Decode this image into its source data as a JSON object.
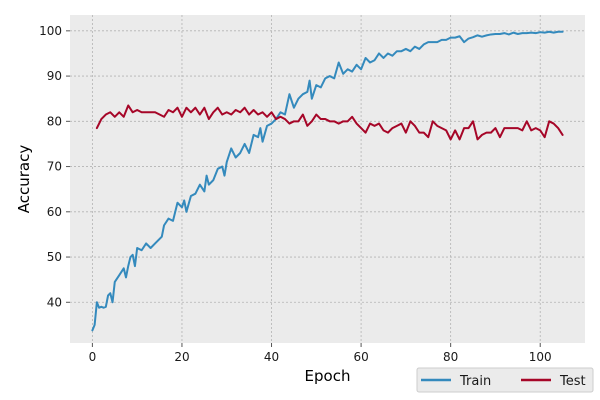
{
  "chart_data": {
    "type": "line",
    "title": "",
    "xlabel": "Epoch",
    "ylabel": "Accuracy",
    "xlim": [
      -5,
      110
    ],
    "ylim": [
      31,
      103.5
    ],
    "xticks": [
      0,
      20,
      40,
      60,
      80,
      100
    ],
    "yticks": [
      40,
      50,
      60,
      70,
      80,
      90,
      100
    ],
    "grid": true,
    "legend": "bottom-right (outside plot)",
    "colors": {
      "background": "#ebebeb",
      "grid": "#b3b3b3"
    },
    "series": [
      {
        "name": "Train",
        "color": "#348abd",
        "points": [
          [
            0,
            33.8
          ],
          [
            0.5,
            35
          ],
          [
            1,
            40
          ],
          [
            1.5,
            38.8
          ],
          [
            2,
            39
          ],
          [
            2.5,
            38.8
          ],
          [
            3,
            39
          ],
          [
            3.5,
            41.5
          ],
          [
            4,
            42
          ],
          [
            4.5,
            40
          ],
          [
            5,
            44.5
          ],
          [
            6,
            46
          ],
          [
            7,
            47.5
          ],
          [
            7.5,
            45.5
          ],
          [
            8,
            48
          ],
          [
            8.5,
            50
          ],
          [
            9,
            50.5
          ],
          [
            9.5,
            48
          ],
          [
            10,
            52
          ],
          [
            11,
            51.5
          ],
          [
            12,
            53
          ],
          [
            13,
            52
          ],
          [
            14,
            53
          ],
          [
            15,
            54
          ],
          [
            15.5,
            54.5
          ],
          [
            16,
            57
          ],
          [
            17,
            58.5
          ],
          [
            18,
            58
          ],
          [
            18.5,
            60
          ],
          [
            19,
            62
          ],
          [
            20,
            61
          ],
          [
            20.5,
            62.5
          ],
          [
            21,
            60
          ],
          [
            22,
            63.5
          ],
          [
            23,
            64
          ],
          [
            24,
            66
          ],
          [
            25,
            64.5
          ],
          [
            25.5,
            68
          ],
          [
            26,
            66
          ],
          [
            27,
            67
          ],
          [
            28,
            69.5
          ],
          [
            29,
            70
          ],
          [
            29.5,
            68
          ],
          [
            30,
            71
          ],
          [
            31,
            74
          ],
          [
            32,
            72
          ],
          [
            33,
            73
          ],
          [
            34,
            75
          ],
          [
            35,
            73
          ],
          [
            36,
            77
          ],
          [
            37,
            76.5
          ],
          [
            37.5,
            78.5
          ],
          [
            38,
            75.5
          ],
          [
            39,
            79
          ],
          [
            40,
            79.5
          ],
          [
            41,
            80.5
          ],
          [
            42,
            82
          ],
          [
            43,
            81.5
          ],
          [
            44,
            86
          ],
          [
            45,
            83
          ],
          [
            46,
            85
          ],
          [
            47,
            86
          ],
          [
            48,
            86.5
          ],
          [
            48.5,
            89
          ],
          [
            49,
            85
          ],
          [
            50,
            88
          ],
          [
            51,
            87.5
          ],
          [
            52,
            89.5
          ],
          [
            53,
            90
          ],
          [
            54,
            89.5
          ],
          [
            55,
            93
          ],
          [
            56,
            90.5
          ],
          [
            57,
            91.5
          ],
          [
            58,
            91
          ],
          [
            59,
            92.5
          ],
          [
            60,
            91.5
          ],
          [
            61,
            94
          ],
          [
            62,
            93
          ],
          [
            63,
            93.5
          ],
          [
            64,
            95
          ],
          [
            65,
            94
          ],
          [
            66,
            95
          ],
          [
            67,
            94.5
          ],
          [
            68,
            95.5
          ],
          [
            69,
            95.5
          ],
          [
            70,
            96
          ],
          [
            71,
            95.5
          ],
          [
            72,
            96.5
          ],
          [
            73,
            96
          ],
          [
            74,
            97
          ],
          [
            75,
            97.5
          ],
          [
            76,
            97.5
          ],
          [
            77,
            97.5
          ],
          [
            78,
            98
          ],
          [
            79,
            98
          ],
          [
            80,
            98.5
          ],
          [
            81,
            98.5
          ],
          [
            82,
            98.8
          ],
          [
            83,
            97.5
          ],
          [
            84,
            98.3
          ],
          [
            85,
            98.6
          ],
          [
            86,
            99
          ],
          [
            87,
            98.7
          ],
          [
            88,
            99
          ],
          [
            89,
            99.2
          ],
          [
            90,
            99.3
          ],
          [
            91,
            99.3
          ],
          [
            92,
            99.5
          ],
          [
            93,
            99.2
          ],
          [
            94,
            99.6
          ],
          [
            95,
            99.3
          ],
          [
            96,
            99.5
          ],
          [
            97,
            99.5
          ],
          [
            98,
            99.6
          ],
          [
            99,
            99.5
          ],
          [
            100,
            99.7
          ],
          [
            101,
            99.6
          ],
          [
            102,
            99.8
          ],
          [
            103,
            99.6
          ],
          [
            104,
            99.8
          ],
          [
            105,
            99.8
          ]
        ]
      },
      {
        "name": "Test",
        "color": "#a60628",
        "points": [
          [
            1,
            78.5
          ],
          [
            2,
            80.5
          ],
          [
            3,
            81.5
          ],
          [
            4,
            82
          ],
          [
            5,
            81
          ],
          [
            6,
            82
          ],
          [
            7,
            81
          ],
          [
            8,
            83.5
          ],
          [
            9,
            82
          ],
          [
            10,
            82.5
          ],
          [
            11,
            82
          ],
          [
            12,
            82
          ],
          [
            13,
            82
          ],
          [
            14,
            82
          ],
          [
            15,
            81.5
          ],
          [
            16,
            81
          ],
          [
            17,
            82.5
          ],
          [
            18,
            82
          ],
          [
            19,
            83
          ],
          [
            20,
            81
          ],
          [
            21,
            83
          ],
          [
            22,
            82
          ],
          [
            23,
            83
          ],
          [
            24,
            81.5
          ],
          [
            25,
            83
          ],
          [
            26,
            80.5
          ],
          [
            27,
            82
          ],
          [
            28,
            83
          ],
          [
            29,
            81.5
          ],
          [
            30,
            82
          ],
          [
            31,
            81.5
          ],
          [
            32,
            82.5
          ],
          [
            33,
            82
          ],
          [
            34,
            83
          ],
          [
            35,
            81.5
          ],
          [
            36,
            82.5
          ],
          [
            37,
            81.5
          ],
          [
            38,
            82
          ],
          [
            39,
            81
          ],
          [
            40,
            82
          ],
          [
            41,
            80.5
          ],
          [
            42,
            81
          ],
          [
            43,
            80.5
          ],
          [
            44,
            79.5
          ],
          [
            45,
            80
          ],
          [
            46,
            80
          ],
          [
            47,
            81.5
          ],
          [
            48,
            79
          ],
          [
            49,
            80
          ],
          [
            50,
            81.5
          ],
          [
            51,
            80.5
          ],
          [
            52,
            80.5
          ],
          [
            53,
            80
          ],
          [
            54,
            80
          ],
          [
            55,
            79.5
          ],
          [
            56,
            80
          ],
          [
            57,
            80
          ],
          [
            58,
            81
          ],
          [
            59,
            79.5
          ],
          [
            60,
            78.5
          ],
          [
            61,
            77.5
          ],
          [
            62,
            79.5
          ],
          [
            63,
            79
          ],
          [
            64,
            79.5
          ],
          [
            65,
            78
          ],
          [
            66,
            77.5
          ],
          [
            67,
            78.5
          ],
          [
            68,
            79
          ],
          [
            69,
            79.5
          ],
          [
            70,
            77.5
          ],
          [
            71,
            80
          ],
          [
            72,
            79
          ],
          [
            73,
            77.5
          ],
          [
            74,
            77.5
          ],
          [
            75,
            76.5
          ],
          [
            76,
            80
          ],
          [
            77,
            79
          ],
          [
            78,
            78.5
          ],
          [
            79,
            78
          ],
          [
            80,
            76
          ],
          [
            81,
            78
          ],
          [
            82,
            76
          ],
          [
            83,
            78.5
          ],
          [
            84,
            78.5
          ],
          [
            85,
            80
          ],
          [
            86,
            76
          ],
          [
            87,
            77
          ],
          [
            88,
            77.5
          ],
          [
            89,
            77.5
          ],
          [
            90,
            78.5
          ],
          [
            91,
            76.5
          ],
          [
            92,
            78.5
          ],
          [
            93,
            78.5
          ],
          [
            94,
            78.5
          ],
          [
            95,
            78.5
          ],
          [
            96,
            78
          ],
          [
            97,
            80
          ],
          [
            98,
            78
          ],
          [
            99,
            78.5
          ],
          [
            100,
            78
          ],
          [
            101,
            76.5
          ],
          [
            102,
            80
          ],
          [
            103,
            79.5
          ],
          [
            104,
            78.5
          ],
          [
            105,
            77
          ]
        ]
      }
    ]
  }
}
